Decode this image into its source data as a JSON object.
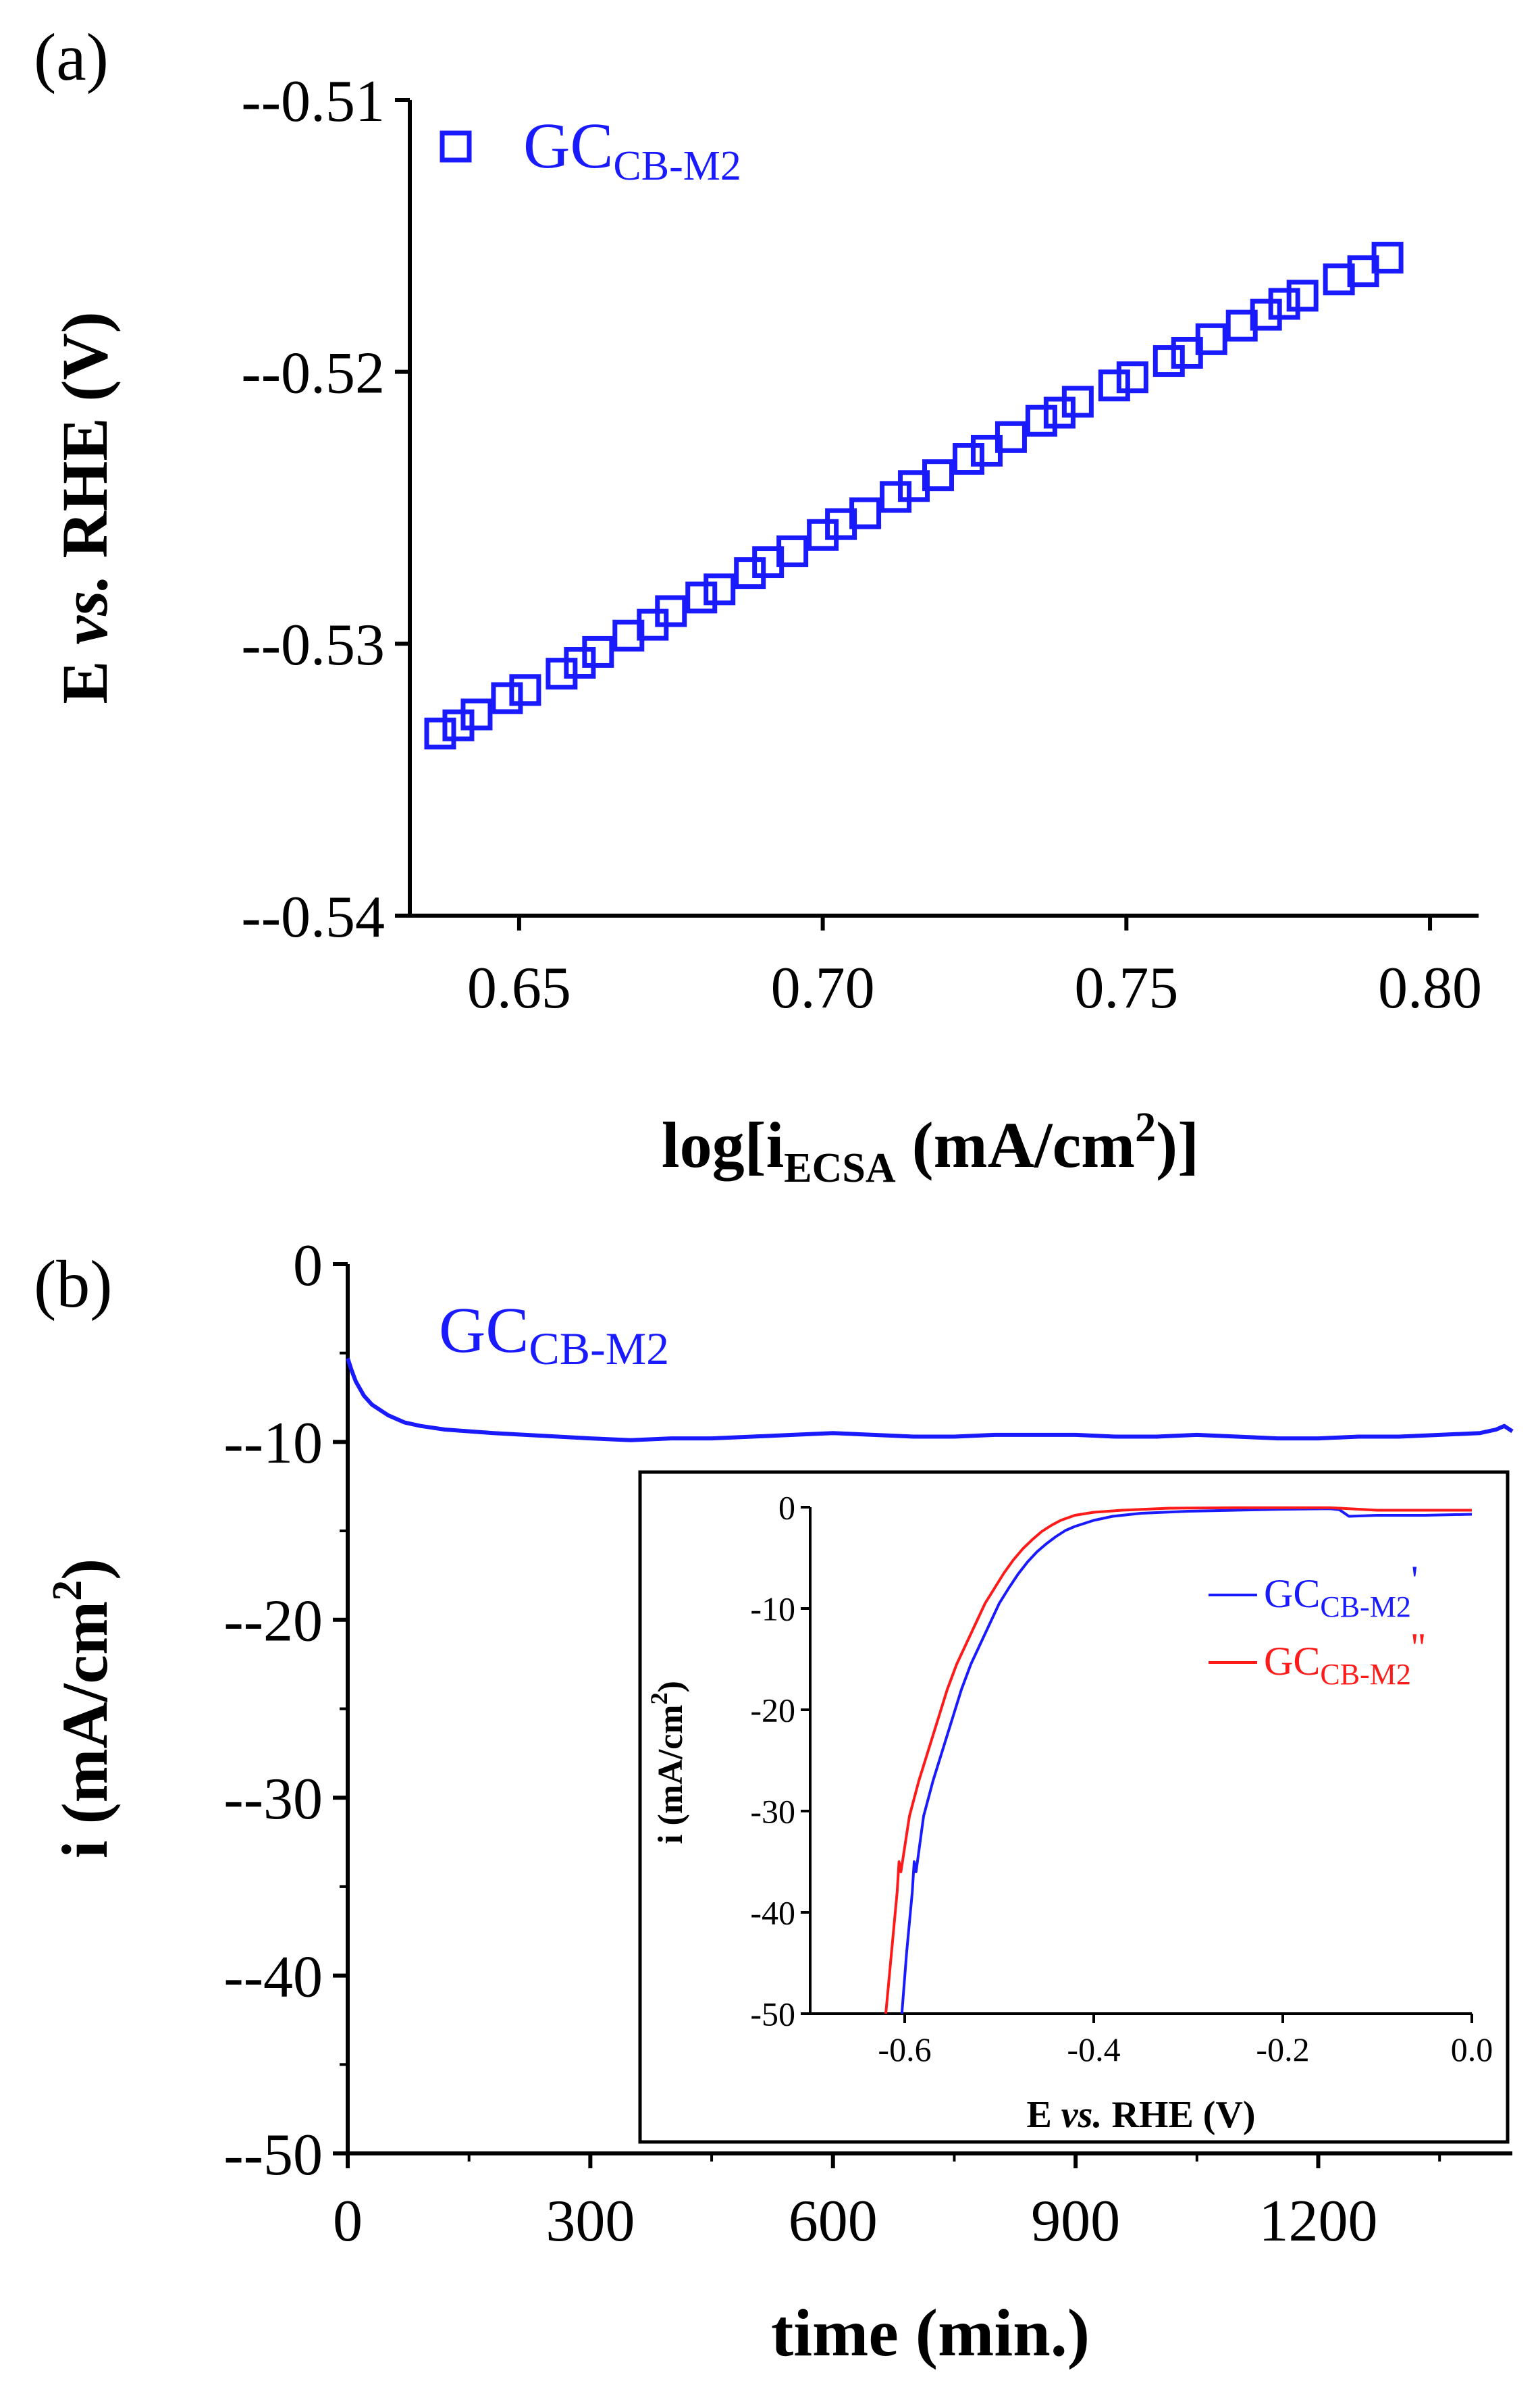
{
  "chart_data": [
    {
      "id": "a",
      "panel_label": "(a)",
      "type": "scatter",
      "xlabel": {
        "base": "log[i",
        "sub": "ECSA",
        "unit": " (mA/cm",
        "sup": "2",
        "close": ")]"
      },
      "ylabel": {
        "pre": "E ",
        "italic": "vs.",
        "post": " RHE (V)"
      },
      "xlim": [
        0.632,
        0.808
      ],
      "ylim": [
        -0.54,
        -0.51
      ],
      "xticks": [
        0.65,
        0.7,
        0.75,
        0.8
      ],
      "xtick_labels": [
        "0.65",
        "0.70",
        "0.75",
        "0.80"
      ],
      "yticks": [
        -0.51,
        -0.52,
        -0.53,
        -0.54
      ],
      "ytick_labels": [
        "--0.51",
        "--0.52",
        "--0.53",
        "--0.54"
      ],
      "legend": {
        "label": "GC",
        "sub": "CB-M2",
        "position": "top-left"
      },
      "color": "#1a1aff",
      "series": [
        {
          "name": "GC_CB-M2",
          "x": [
            0.637,
            0.64,
            0.643,
            0.648,
            0.651,
            0.657,
            0.66,
            0.663,
            0.668,
            0.672,
            0.675,
            0.68,
            0.683,
            0.688,
            0.691,
            0.695,
            0.7,
            0.703,
            0.707,
            0.712,
            0.715,
            0.719,
            0.724,
            0.727,
            0.731,
            0.736,
            0.739,
            0.742,
            0.748,
            0.751,
            0.757,
            0.76,
            0.764,
            0.769,
            0.773,
            0.776,
            0.779,
            0.785,
            0.789,
            0.793
          ],
          "y": [
            -0.5333,
            -0.533,
            -0.5326,
            -0.532,
            -0.5317,
            -0.5311,
            -0.5307,
            -0.5303,
            -0.5297,
            -0.5293,
            -0.5288,
            -0.5283,
            -0.528,
            -0.5274,
            -0.527,
            -0.5266,
            -0.526,
            -0.5256,
            -0.5252,
            -0.5246,
            -0.5242,
            -0.5238,
            -0.5232,
            -0.5229,
            -0.5224,
            -0.5218,
            -0.5215,
            -0.5211,
            -0.5205,
            -0.5202,
            -0.5196,
            -0.5193,
            -0.5188,
            -0.5183,
            -0.5179,
            -0.5175,
            -0.5172,
            -0.5166,
            -0.5163,
            -0.5158
          ]
        }
      ]
    },
    {
      "id": "b",
      "panel_label": "(b)",
      "type": "line",
      "xlabel": {
        "text": "time (min.)"
      },
      "ylabel": {
        "base": "i (mA/cm",
        "sup": "2",
        "close": ")"
      },
      "xlim": [
        0,
        1440
      ],
      "ylim": [
        -50,
        0
      ],
      "xticks": [
        0,
        300,
        600,
        900,
        1200
      ],
      "xtick_labels": [
        "0",
        "300",
        "600",
        "900",
        "1200"
      ],
      "yticks": [
        0,
        -10,
        -20,
        -30,
        -40,
        -50
      ],
      "ytick_labels": [
        "0",
        "--10",
        "--20",
        "--30",
        "--40",
        "--50"
      ],
      "annotation": {
        "label": "GC",
        "sub": "CB-M2"
      },
      "color": "#1a1aff",
      "series": [
        {
          "name": "GC_CB-M2",
          "x": [
            0,
            5,
            10,
            20,
            30,
            40,
            50,
            70,
            90,
            120,
            150,
            180,
            220,
            260,
            300,
            350,
            400,
            450,
            500,
            550,
            600,
            650,
            700,
            750,
            800,
            850,
            900,
            950,
            1000,
            1050,
            1100,
            1150,
            1200,
            1250,
            1300,
            1350,
            1400,
            1420,
            1430,
            1440
          ],
          "y": [
            -5.3,
            -6.0,
            -6.6,
            -7.4,
            -7.9,
            -8.2,
            -8.5,
            -8.9,
            -9.1,
            -9.3,
            -9.4,
            -9.5,
            -9.6,
            -9.7,
            -9.8,
            -9.9,
            -9.8,
            -9.8,
            -9.7,
            -9.6,
            -9.5,
            -9.6,
            -9.7,
            -9.7,
            -9.6,
            -9.6,
            -9.6,
            -9.7,
            -9.7,
            -9.6,
            -9.7,
            -9.8,
            -9.8,
            -9.7,
            -9.7,
            -9.6,
            -9.5,
            -9.3,
            -9.1,
            -9.4
          ]
        }
      ]
    },
    {
      "id": "b-inset",
      "type": "line",
      "xlabel": {
        "pre": "E ",
        "italic": "vs.",
        "post": " RHE (V)"
      },
      "ylabel": {
        "base": "i (mA/cm",
        "sup": "2",
        "close": ")"
      },
      "xlim": [
        -0.7,
        0.0
      ],
      "ylim": [
        -50,
        0
      ],
      "xticks": [
        -0.6,
        -0.4,
        -0.2,
        0.0
      ],
      "xtick_labels": [
        "-0.6",
        "-0.4",
        "-0.2",
        "0.0"
      ],
      "yticks": [
        0,
        -10,
        -20,
        -30,
        -40,
        -50
      ],
      "ytick_labels": [
        "0",
        "-10",
        "-20",
        "-30",
        "-40",
        "-50"
      ],
      "legend_position": "right",
      "series": [
        {
          "name": "GC_CB-M2'",
          "label": "GC",
          "sub": "CB-M2",
          "mark": "'",
          "color": "#1a1aff",
          "x": [
            -0.603,
            -0.598,
            -0.592,
            -0.59,
            -0.588,
            -0.58,
            -0.57,
            -0.56,
            -0.55,
            -0.54,
            -0.53,
            -0.52,
            -0.51,
            -0.5,
            -0.49,
            -0.48,
            -0.47,
            -0.46,
            -0.45,
            -0.44,
            -0.43,
            -0.42,
            -0.4,
            -0.38,
            -0.35,
            -0.3,
            -0.25,
            -0.2,
            -0.15,
            -0.14,
            -0.13,
            -0.1,
            -0.05,
            0.0
          ],
          "y": [
            -50,
            -44,
            -38,
            -35,
            -36,
            -30.5,
            -27,
            -24,
            -21,
            -18,
            -15.5,
            -13.5,
            -11.5,
            -9.5,
            -8,
            -6.6,
            -5.4,
            -4.4,
            -3.6,
            -2.9,
            -2.3,
            -1.9,
            -1.3,
            -0.9,
            -0.6,
            -0.4,
            -0.3,
            -0.2,
            -0.15,
            -0.25,
            -0.9,
            -0.8,
            -0.8,
            -0.7
          ]
        },
        {
          "name": "GC_CB-M2''",
          "label": "GC",
          "sub": "CB-M2",
          "mark": "''",
          "color": "#ff1a1a",
          "x": [
            -0.62,
            -0.614,
            -0.608,
            -0.606,
            -0.604,
            -0.595,
            -0.585,
            -0.575,
            -0.565,
            -0.555,
            -0.545,
            -0.535,
            -0.525,
            -0.515,
            -0.505,
            -0.495,
            -0.485,
            -0.475,
            -0.465,
            -0.455,
            -0.445,
            -0.435,
            -0.42,
            -0.4,
            -0.37,
            -0.32,
            -0.25,
            -0.2,
            -0.15,
            -0.1,
            -0.05,
            0.0
          ],
          "y": [
            -50,
            -44,
            -38,
            -35,
            -36,
            -30.5,
            -27,
            -24,
            -21,
            -18,
            -15.5,
            -13.5,
            -11.5,
            -9.5,
            -8,
            -6.5,
            -5.2,
            -4.1,
            -3.2,
            -2.4,
            -1.8,
            -1.3,
            -0.8,
            -0.5,
            -0.3,
            -0.1,
            -0.05,
            -0.05,
            -0.05,
            -0.3,
            -0.3,
            -0.3
          ]
        }
      ]
    }
  ]
}
